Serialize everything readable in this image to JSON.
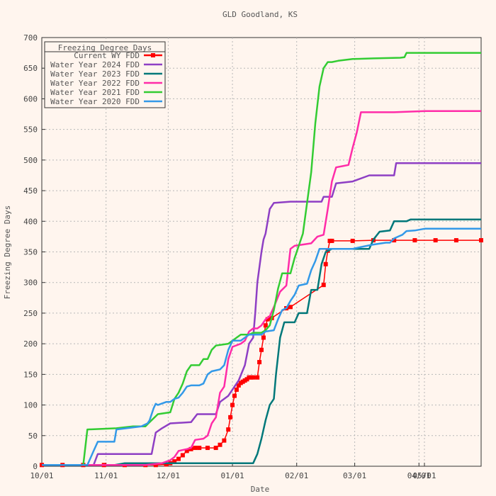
{
  "chart_data": {
    "type": "line",
    "title": "GLD Goodland, KS",
    "xlabel": "Date",
    "ylabel": "Freezing Degree Days",
    "ylim": [
      0,
      700
    ],
    "xlim": [
      "10/01",
      "12/31+"
    ],
    "grid": true,
    "legend": {
      "title": "Freezing Degree Days",
      "position": "top-left"
    },
    "x_ticks": [
      "10/01",
      "11/01",
      "12/01",
      "01/01",
      "02/01",
      "03/01",
      "04/01",
      "05/01"
    ],
    "y_ticks": [
      0,
      50,
      100,
      150,
      200,
      250,
      300,
      350,
      400,
      450,
      500,
      550,
      600,
      650,
      700
    ],
    "series": [
      {
        "name": "Current WY FDD",
        "color": "#ff0000",
        "marker": "square",
        "points": [
          [
            0,
            2
          ],
          [
            10,
            2
          ],
          [
            20,
            2
          ],
          [
            30,
            2
          ],
          [
            40,
            2
          ],
          [
            50,
            2
          ],
          [
            55,
            2
          ],
          [
            60,
            3
          ],
          [
            62,
            5
          ],
          [
            64,
            8
          ],
          [
            66,
            12
          ],
          [
            68,
            18
          ],
          [
            70,
            25
          ],
          [
            72,
            28
          ],
          [
            74,
            30
          ],
          [
            76,
            30
          ],
          [
            80,
            30
          ],
          [
            84,
            30
          ],
          [
            86,
            35
          ],
          [
            88,
            42
          ],
          [
            90,
            60
          ],
          [
            91,
            80
          ],
          [
            92,
            100
          ],
          [
            93,
            115
          ],
          [
            94,
            125
          ],
          [
            95,
            132
          ],
          [
            96,
            136
          ],
          [
            97,
            138
          ],
          [
            98,
            140
          ],
          [
            99,
            142
          ],
          [
            100,
            145
          ],
          [
            101,
            145
          ],
          [
            102,
            145
          ],
          [
            104,
            145
          ],
          [
            105,
            170
          ],
          [
            106,
            190
          ],
          [
            107,
            210
          ],
          [
            108,
            230
          ],
          [
            109,
            240
          ],
          [
            110,
            242
          ],
          [
            111,
            242
          ],
          [
            118,
            258
          ],
          [
            120,
            260
          ],
          [
            136,
            296
          ],
          [
            137,
            330
          ],
          [
            138,
            352
          ],
          [
            139,
            368
          ],
          [
            140,
            368
          ],
          [
            150,
            368
          ],
          [
            160,
            369
          ],
          [
            170,
            369
          ],
          [
            180,
            369
          ],
          [
            190,
            369
          ],
          [
            200,
            369
          ],
          [
            212,
            369
          ]
        ]
      },
      {
        "name": "Water Year 2024 FDD",
        "color": "#8e3fc4",
        "points": [
          [
            0,
            2
          ],
          [
            25,
            2
          ],
          [
            27,
            20
          ],
          [
            53,
            20
          ],
          [
            55,
            55
          ],
          [
            58,
            62
          ],
          [
            62,
            70
          ],
          [
            72,
            72
          ],
          [
            75,
            85
          ],
          [
            84,
            85
          ],
          [
            86,
            105
          ],
          [
            90,
            115
          ],
          [
            95,
            140
          ],
          [
            98,
            165
          ],
          [
            100,
            200
          ],
          [
            102,
            210
          ],
          [
            103,
            250
          ],
          [
            104,
            300
          ],
          [
            106,
            350
          ],
          [
            107,
            370
          ],
          [
            108,
            380
          ],
          [
            110,
            420
          ],
          [
            112,
            430
          ],
          [
            120,
            432
          ],
          [
            135,
            432
          ],
          [
            136,
            440
          ],
          [
            140,
            440
          ],
          [
            142,
            462
          ],
          [
            150,
            465
          ],
          [
            158,
            475
          ],
          [
            170,
            475
          ],
          [
            171,
            495
          ],
          [
            212,
            495
          ]
        ]
      },
      {
        "name": "Water Year 2023 FDD",
        "color": "#00787a",
        "points": [
          [
            0,
            2
          ],
          [
            35,
            2
          ],
          [
            40,
            5
          ],
          [
            96,
            5
          ],
          [
            102,
            5
          ],
          [
            104,
            20
          ],
          [
            106,
            45
          ],
          [
            108,
            75
          ],
          [
            110,
            100
          ],
          [
            112,
            110
          ],
          [
            113,
            150
          ],
          [
            115,
            210
          ],
          [
            117,
            235
          ],
          [
            122,
            235
          ],
          [
            124,
            250
          ],
          [
            128,
            250
          ],
          [
            130,
            288
          ],
          [
            133,
            288
          ],
          [
            135,
            330
          ],
          [
            137,
            350
          ],
          [
            140,
            355
          ],
          [
            158,
            355
          ],
          [
            160,
            370
          ],
          [
            163,
            383
          ],
          [
            168,
            385
          ],
          [
            170,
            400
          ],
          [
            176,
            400
          ],
          [
            178,
            403
          ],
          [
            212,
            403
          ]
        ]
      },
      {
        "name": "Water Year 2022 FDD",
        "color": "#ff2ca8",
        "points": [
          [
            0,
            2
          ],
          [
            50,
            2
          ],
          [
            58,
            5
          ],
          [
            62,
            10
          ],
          [
            64,
            15
          ],
          [
            66,
            25
          ],
          [
            70,
            28
          ],
          [
            72,
            30
          ],
          [
            74,
            43
          ],
          [
            78,
            45
          ],
          [
            80,
            50
          ],
          [
            82,
            70
          ],
          [
            84,
            80
          ],
          [
            86,
            120
          ],
          [
            88,
            130
          ],
          [
            90,
            175
          ],
          [
            92,
            195
          ],
          [
            96,
            200
          ],
          [
            98,
            205
          ],
          [
            100,
            220
          ],
          [
            102,
            225
          ],
          [
            104,
            225
          ],
          [
            106,
            230
          ],
          [
            108,
            240
          ],
          [
            110,
            245
          ],
          [
            112,
            260
          ],
          [
            115,
            285
          ],
          [
            118,
            295
          ],
          [
            120,
            355
          ],
          [
            122,
            360
          ],
          [
            126,
            362
          ],
          [
            130,
            364
          ],
          [
            133,
            375
          ],
          [
            136,
            378
          ],
          [
            138,
            420
          ],
          [
            140,
            465
          ],
          [
            142,
            488
          ],
          [
            145,
            490
          ],
          [
            148,
            492
          ],
          [
            150,
            520
          ],
          [
            152,
            545
          ],
          [
            154,
            578
          ],
          [
            170,
            578
          ],
          [
            185,
            580
          ],
          [
            212,
            580
          ]
        ]
      },
      {
        "name": "Water Year 2021 FDD",
        "color": "#33cc33",
        "points": [
          [
            0,
            2
          ],
          [
            20,
            2
          ],
          [
            22,
            60
          ],
          [
            36,
            62
          ],
          [
            44,
            65
          ],
          [
            50,
            65
          ],
          [
            52,
            72
          ],
          [
            56,
            85
          ],
          [
            62,
            88
          ],
          [
            64,
            110
          ],
          [
            66,
            120
          ],
          [
            68,
            135
          ],
          [
            70,
            155
          ],
          [
            72,
            165
          ],
          [
            76,
            165
          ],
          [
            78,
            175
          ],
          [
            80,
            175
          ],
          [
            82,
            190
          ],
          [
            84,
            197
          ],
          [
            90,
            200
          ],
          [
            94,
            210
          ],
          [
            96,
            215
          ],
          [
            100,
            215
          ],
          [
            102,
            218
          ],
          [
            106,
            218
          ],
          [
            108,
            222
          ],
          [
            110,
            230
          ],
          [
            112,
            255
          ],
          [
            114,
            290
          ],
          [
            116,
            315
          ],
          [
            120,
            315
          ],
          [
            122,
            340
          ],
          [
            126,
            380
          ],
          [
            130,
            480
          ],
          [
            132,
            560
          ],
          [
            134,
            620
          ],
          [
            136,
            650
          ],
          [
            138,
            660
          ],
          [
            140,
            660
          ],
          [
            143,
            662
          ],
          [
            150,
            665
          ],
          [
            160,
            666
          ],
          [
            173,
            667
          ],
          [
            175,
            668
          ],
          [
            176,
            675
          ],
          [
            212,
            675
          ]
        ]
      },
      {
        "name": "Water Year 2020 FDD",
        "color": "#3399e8",
        "points": [
          [
            0,
            2
          ],
          [
            22,
            2
          ],
          [
            25,
            25
          ],
          [
            27,
            40
          ],
          [
            35,
            40
          ],
          [
            36,
            60
          ],
          [
            48,
            65
          ],
          [
            51,
            70
          ],
          [
            52,
            75
          ],
          [
            54,
            95
          ],
          [
            55,
            102
          ],
          [
            56,
            100
          ],
          [
            60,
            105
          ],
          [
            62,
            105
          ],
          [
            64,
            110
          ],
          [
            66,
            112
          ],
          [
            68,
            120
          ],
          [
            70,
            130
          ],
          [
            72,
            132
          ],
          [
            76,
            132
          ],
          [
            78,
            135
          ],
          [
            80,
            150
          ],
          [
            82,
            155
          ],
          [
            86,
            158
          ],
          [
            88,
            165
          ],
          [
            90,
            190
          ],
          [
            92,
            205
          ],
          [
            96,
            205
          ],
          [
            98,
            210
          ],
          [
            100,
            215
          ],
          [
            106,
            215
          ],
          [
            108,
            220
          ],
          [
            112,
            222
          ],
          [
            114,
            240
          ],
          [
            116,
            255
          ],
          [
            118,
            258
          ],
          [
            120,
            270
          ],
          [
            122,
            280
          ],
          [
            124,
            295
          ],
          [
            128,
            298
          ],
          [
            130,
            320
          ],
          [
            132,
            335
          ],
          [
            134,
            355
          ],
          [
            140,
            355
          ],
          [
            150,
            355
          ],
          [
            154,
            358
          ],
          [
            160,
            362
          ],
          [
            164,
            364
          ],
          [
            166,
            365
          ],
          [
            168,
            365
          ],
          [
            170,
            372
          ],
          [
            172,
            375
          ],
          [
            174,
            378
          ],
          [
            176,
            384
          ],
          [
            180,
            385
          ],
          [
            185,
            388
          ],
          [
            212,
            388
          ]
        ]
      }
    ]
  }
}
